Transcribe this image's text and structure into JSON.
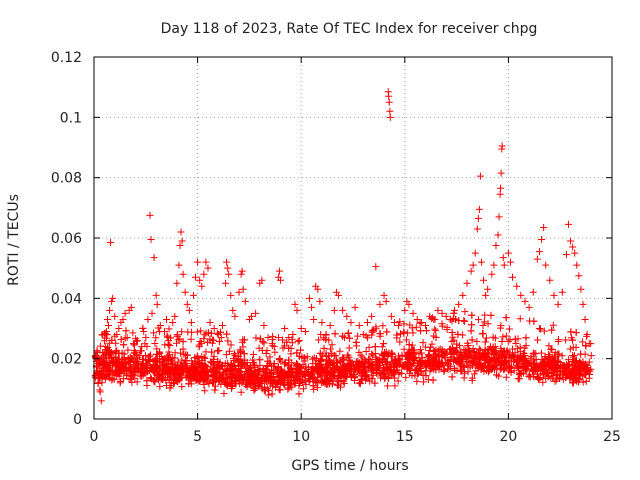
{
  "chart_data": {
    "type": "scatter",
    "title": "Day 118 of 2023, Rate Of TEC Index for receiver chpg",
    "xlabel": "GPS time / hours",
    "ylabel": "ROTI / TECUs",
    "xlim": [
      0,
      25
    ],
    "ylim": [
      0,
      0.12
    ],
    "xticks": [
      0,
      5,
      10,
      15,
      20,
      25
    ],
    "yticks": [
      0,
      0.02,
      0.04,
      0.06,
      0.08,
      0.1,
      0.12
    ],
    "xtick_labels": [
      "0",
      "5",
      "10",
      "15",
      "20",
      "25"
    ],
    "ytick_labels": [
      "0",
      "0.02",
      "0.04",
      "0.06",
      "0.08",
      "0.1",
      "0.12"
    ],
    "grid": true,
    "marker": "+",
    "marker_color": "#ff0000",
    "series": [
      {
        "name": "ROTI",
        "points": [
          [
            0.1,
            0.021
          ],
          [
            0.15,
            0.016
          ],
          [
            0.2,
            0.012
          ],
          [
            0.3,
            0.009
          ],
          [
            0.35,
            0.006
          ],
          [
            0.4,
            0.014
          ],
          [
            0.5,
            0.018
          ],
          [
            0.55,
            0.024
          ],
          [
            0.6,
            0.029
          ],
          [
            0.65,
            0.033
          ],
          [
            0.7,
            0.031
          ],
          [
            0.75,
            0.036
          ],
          [
            0.8,
            0.0585
          ],
          [
            0.85,
            0.039
          ],
          [
            0.9,
            0.04
          ],
          [
            1.0,
            0.034
          ],
          [
            1.1,
            0.028
          ],
          [
            1.2,
            0.03
          ],
          [
            1.3,
            0.032
          ],
          [
            1.4,
            0.033
          ],
          [
            1.5,
            0.035
          ],
          [
            1.6,
            0.027
          ],
          [
            1.7,
            0.036
          ],
          [
            1.8,
            0.037
          ],
          [
            1.9,
            0.025
          ],
          [
            2.0,
            0.022
          ],
          [
            2.1,
            0.026
          ],
          [
            2.2,
            0.021
          ],
          [
            2.3,
            0.024
          ],
          [
            2.4,
            0.029
          ],
          [
            2.5,
            0.027
          ],
          [
            2.6,
            0.033
          ],
          [
            2.7,
            0.0675
          ],
          [
            2.75,
            0.0595
          ],
          [
            2.8,
            0.035
          ],
          [
            2.9,
            0.0535
          ],
          [
            3.0,
            0.041
          ],
          [
            3.05,
            0.038
          ],
          [
            3.2,
            0.031
          ],
          [
            3.4,
            0.029
          ],
          [
            3.5,
            0.033
          ],
          [
            3.6,
            0.026
          ],
          [
            3.8,
            0.032
          ],
          [
            3.9,
            0.034
          ],
          [
            4.0,
            0.045
          ],
          [
            4.1,
            0.051
          ],
          [
            4.15,
            0.0575
          ],
          [
            4.2,
            0.062
          ],
          [
            4.25,
            0.059
          ],
          [
            4.3,
            0.048
          ],
          [
            4.4,
            0.042
          ],
          [
            4.5,
            0.038
          ],
          [
            4.6,
            0.036
          ],
          [
            4.7,
            0.032
          ],
          [
            4.8,
            0.041
          ],
          [
            4.9,
            0.047
          ],
          [
            5.0,
            0.052
          ],
          [
            5.1,
            0.046
          ],
          [
            5.2,
            0.044
          ],
          [
            5.3,
            0.048
          ],
          [
            5.4,
            0.052
          ],
          [
            5.5,
            0.05
          ],
          [
            5.6,
            0.032
          ],
          [
            5.8,
            0.03
          ],
          [
            6.0,
            0.028
          ],
          [
            6.2,
            0.031
          ],
          [
            6.35,
            0.045
          ],
          [
            6.4,
            0.052
          ],
          [
            6.45,
            0.05
          ],
          [
            6.5,
            0.048
          ],
          [
            6.6,
            0.041
          ],
          [
            6.7,
            0.036
          ],
          [
            6.8,
            0.034
          ],
          [
            7.0,
            0.042
          ],
          [
            7.1,
            0.048
          ],
          [
            7.15,
            0.049
          ],
          [
            7.2,
            0.043
          ],
          [
            7.3,
            0.039
          ],
          [
            7.5,
            0.033
          ],
          [
            7.6,
            0.034
          ],
          [
            7.8,
            0.035
          ],
          [
            8.0,
            0.045
          ],
          [
            8.1,
            0.046
          ],
          [
            8.2,
            0.031
          ],
          [
            8.4,
            0.027
          ],
          [
            8.6,
            0.025
          ],
          [
            8.7,
            0.024
          ],
          [
            8.9,
            0.047
          ],
          [
            8.95,
            0.049
          ],
          [
            9.0,
            0.046
          ],
          [
            9.2,
            0.03
          ],
          [
            9.4,
            0.027
          ],
          [
            9.6,
            0.028
          ],
          [
            9.7,
            0.038
          ],
          [
            9.8,
            0.036
          ],
          [
            10.0,
            0.03
          ],
          [
            10.2,
            0.029
          ],
          [
            10.4,
            0.04
          ],
          [
            10.5,
            0.037
          ],
          [
            10.6,
            0.033
          ],
          [
            10.7,
            0.044
          ],
          [
            10.8,
            0.043
          ],
          [
            10.9,
            0.039
          ],
          [
            11.0,
            0.032
          ],
          [
            11.2,
            0.028
          ],
          [
            11.4,
            0.031
          ],
          [
            11.6,
            0.036
          ],
          [
            11.7,
            0.042
          ],
          [
            11.8,
            0.041
          ],
          [
            12.0,
            0.036
          ],
          [
            12.2,
            0.034
          ],
          [
            12.4,
            0.032
          ],
          [
            12.6,
            0.037
          ],
          [
            12.8,
            0.031
          ],
          [
            13.0,
            0.028
          ],
          [
            13.2,
            0.032
          ],
          [
            13.4,
            0.034
          ],
          [
            13.6,
            0.0505
          ],
          [
            13.8,
            0.038
          ],
          [
            14.0,
            0.041
          ],
          [
            14.1,
            0.039
          ],
          [
            14.2,
            0.1085
          ],
          [
            14.22,
            0.107
          ],
          [
            14.25,
            0.105
          ],
          [
            14.28,
            0.102
          ],
          [
            14.3,
            0.1
          ],
          [
            14.35,
            0.034
          ],
          [
            14.5,
            0.032
          ],
          [
            14.7,
            0.031
          ],
          [
            15.0,
            0.036
          ],
          [
            15.1,
            0.039
          ],
          [
            15.2,
            0.038
          ],
          [
            15.4,
            0.035
          ],
          [
            15.6,
            0.033
          ],
          [
            15.8,
            0.032
          ],
          [
            16.0,
            0.031
          ],
          [
            16.2,
            0.034
          ],
          [
            16.4,
            0.033
          ],
          [
            16.6,
            0.036
          ],
          [
            16.8,
            0.035
          ],
          [
            17.0,
            0.034
          ],
          [
            17.2,
            0.033
          ],
          [
            17.4,
            0.036
          ],
          [
            17.6,
            0.038
          ],
          [
            17.8,
            0.041
          ],
          [
            18.0,
            0.045
          ],
          [
            18.2,
            0.049
          ],
          [
            18.3,
            0.051
          ],
          [
            18.4,
            0.055
          ],
          [
            18.5,
            0.063
          ],
          [
            18.55,
            0.0665
          ],
          [
            18.6,
            0.0695
          ],
          [
            18.65,
            0.0805
          ],
          [
            18.7,
            0.052
          ],
          [
            18.8,
            0.046
          ],
          [
            18.9,
            0.041
          ],
          [
            19.0,
            0.043
          ],
          [
            19.2,
            0.048
          ],
          [
            19.3,
            0.051
          ],
          [
            19.4,
            0.0575
          ],
          [
            19.5,
            0.061
          ],
          [
            19.55,
            0.067
          ],
          [
            19.6,
            0.0745
          ],
          [
            19.62,
            0.0765
          ],
          [
            19.65,
            0.0815
          ],
          [
            19.68,
            0.0895
          ],
          [
            19.7,
            0.0905
          ],
          [
            19.75,
            0.0535
          ],
          [
            19.8,
            0.051
          ],
          [
            20.0,
            0.055
          ],
          [
            20.1,
            0.052
          ],
          [
            20.2,
            0.047
          ],
          [
            20.4,
            0.044
          ],
          [
            20.6,
            0.041
          ],
          [
            20.8,
            0.039
          ],
          [
            21.0,
            0.037
          ],
          [
            21.2,
            0.042
          ],
          [
            21.4,
            0.053
          ],
          [
            21.5,
            0.0555
          ],
          [
            21.6,
            0.0595
          ],
          [
            21.7,
            0.0635
          ],
          [
            21.8,
            0.051
          ],
          [
            22.0,
            0.046
          ],
          [
            22.2,
            0.041
          ],
          [
            22.4,
            0.038
          ],
          [
            22.6,
            0.042
          ],
          [
            22.8,
            0.0545
          ],
          [
            22.9,
            0.0645
          ],
          [
            23.0,
            0.059
          ],
          [
            23.1,
            0.057
          ],
          [
            23.2,
            0.055
          ],
          [
            23.3,
            0.051
          ],
          [
            23.4,
            0.0475
          ],
          [
            23.5,
            0.043
          ],
          [
            23.6,
            0.038
          ],
          [
            23.7,
            0.033
          ],
          [
            23.8,
            0.028
          ],
          [
            23.9,
            0.025
          ],
          [
            24.0,
            0.021
          ]
        ]
      }
    ],
    "dense_band": {
      "description_free_values": true,
      "hour_start": 0.05,
      "hour_end": 24.0,
      "floor_by_hour": [
        [
          0,
          0.006
        ],
        [
          2,
          0.006
        ],
        [
          4,
          0.006
        ],
        [
          6,
          0.005
        ],
        [
          8,
          0.004
        ],
        [
          10,
          0.005
        ],
        [
          12,
          0.006
        ],
        [
          14,
          0.006
        ],
        [
          16,
          0.008
        ],
        [
          18,
          0.009
        ],
        [
          20,
          0.009
        ],
        [
          22,
          0.008
        ],
        [
          24,
          0.007
        ]
      ],
      "core_by_hour": [
        [
          0,
          0.016
        ],
        [
          2,
          0.016
        ],
        [
          4,
          0.015
        ],
        [
          6,
          0.014
        ],
        [
          8,
          0.013
        ],
        [
          10,
          0.014
        ],
        [
          12,
          0.015
        ],
        [
          14,
          0.016
        ],
        [
          16,
          0.018
        ],
        [
          18,
          0.019
        ],
        [
          20,
          0.018
        ],
        [
          22,
          0.016
        ],
        [
          24,
          0.015
        ]
      ],
      "upper_by_hour": [
        [
          0,
          0.028
        ],
        [
          2,
          0.03
        ],
        [
          4,
          0.031
        ],
        [
          6,
          0.029
        ],
        [
          8,
          0.027
        ],
        [
          10,
          0.029
        ],
        [
          12,
          0.03
        ],
        [
          14,
          0.032
        ],
        [
          16,
          0.034
        ],
        [
          18,
          0.036
        ],
        [
          20,
          0.034
        ],
        [
          22,
          0.032
        ],
        [
          24,
          0.027
        ]
      ]
    }
  }
}
